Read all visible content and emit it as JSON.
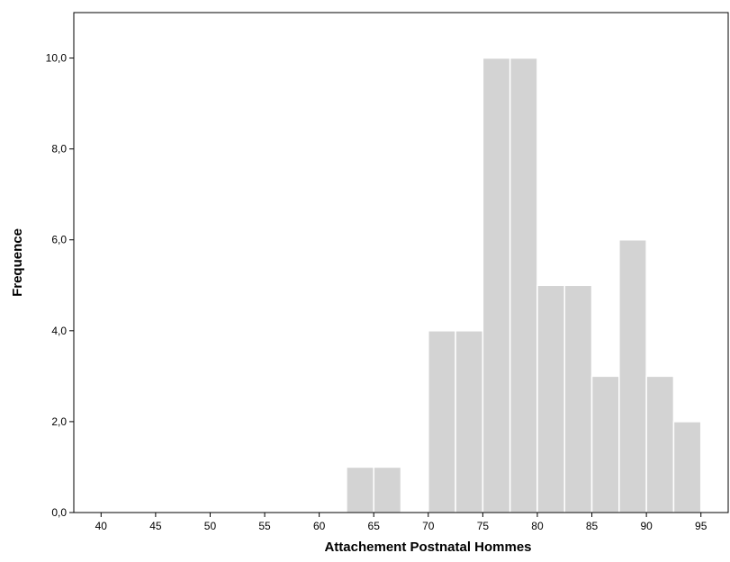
{
  "chart_data": {
    "type": "bar",
    "xlabel": "Attachement Postnatal Hommes",
    "ylabel": "Frequence",
    "bin_width": 2.5,
    "xlim": [
      37.5,
      97.5
    ],
    "ylim": [
      0,
      11.0
    ],
    "x_ticks": [
      40,
      45,
      50,
      55,
      60,
      65,
      70,
      75,
      80,
      85,
      90,
      95
    ],
    "x_tick_labels": [
      "40",
      "45",
      "50",
      "55",
      "60",
      "65",
      "70",
      "75",
      "80",
      "85",
      "90",
      "95"
    ],
    "y_ticks": [
      0,
      2,
      4,
      6,
      8,
      10
    ],
    "y_tick_labels": [
      "0,0",
      "2,0",
      "4,0",
      "6,0",
      "8,0",
      "10,0"
    ],
    "bins": [
      {
        "start": 62.5,
        "end": 65.0,
        "count": 1
      },
      {
        "start": 65.0,
        "end": 67.5,
        "count": 1
      },
      {
        "start": 70.0,
        "end": 72.5,
        "count": 4
      },
      {
        "start": 72.5,
        "end": 75.0,
        "count": 4
      },
      {
        "start": 75.0,
        "end": 77.5,
        "count": 10
      },
      {
        "start": 77.5,
        "end": 80.0,
        "count": 10
      },
      {
        "start": 80.0,
        "end": 82.5,
        "count": 5
      },
      {
        "start": 82.5,
        "end": 85.0,
        "count": 5
      },
      {
        "start": 85.0,
        "end": 87.5,
        "count": 3
      },
      {
        "start": 87.5,
        "end": 90.0,
        "count": 6
      },
      {
        "start": 90.0,
        "end": 92.5,
        "count": 3
      },
      {
        "start": 92.5,
        "end": 95.0,
        "count": 2
      }
    ],
    "bar_color": "#d3d3d3",
    "bar_edge_color": "#ffffff",
    "grid": false
  }
}
